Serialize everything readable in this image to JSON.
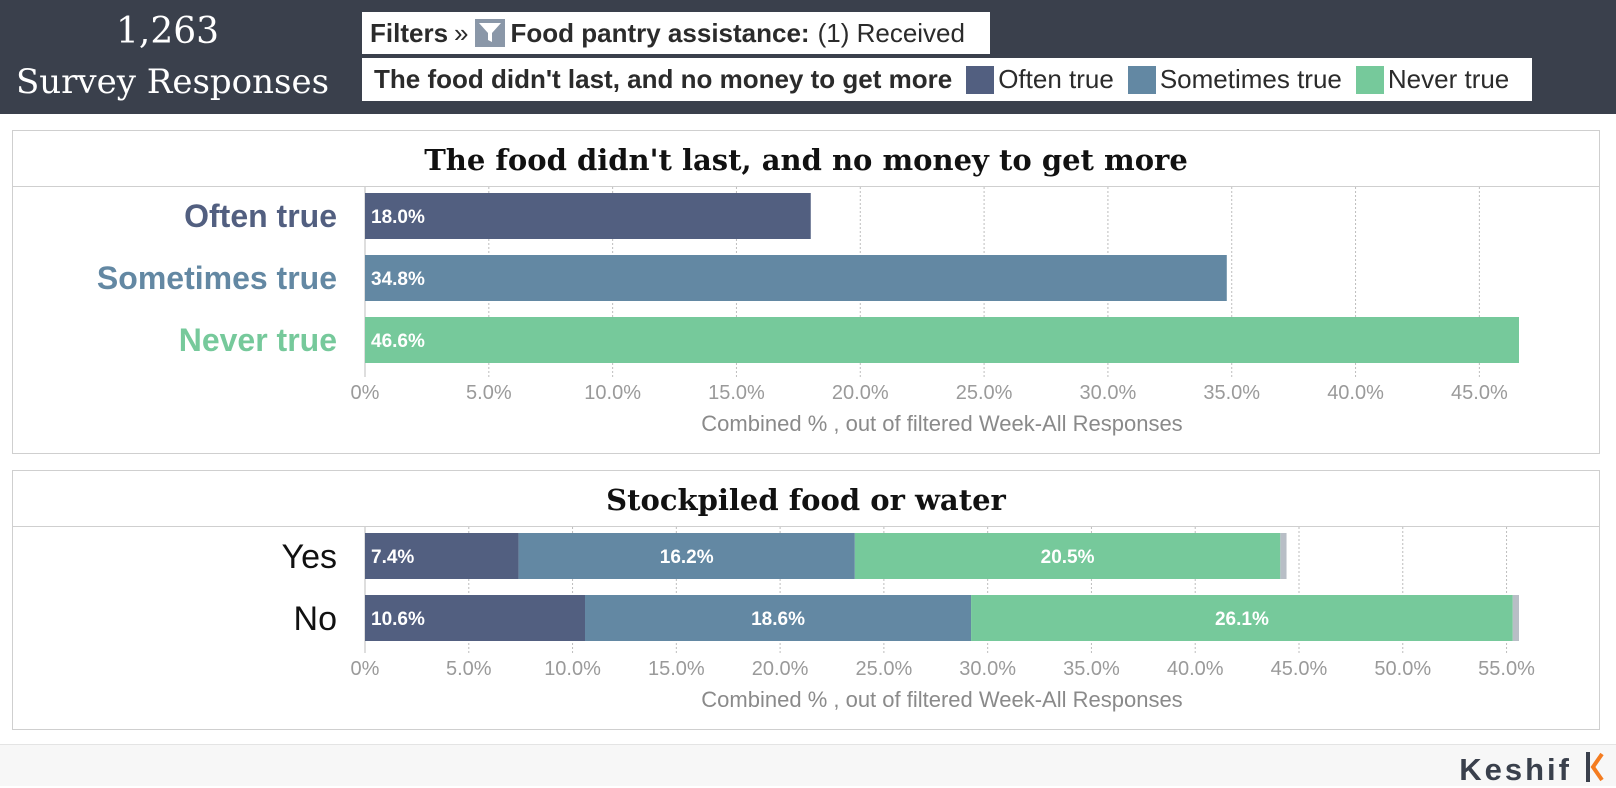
{
  "summary": {
    "count": "1,263",
    "label": "Survey Responses"
  },
  "filters": {
    "label": "Filters",
    "separator": "»",
    "icon": "funnel-icon",
    "name": "Food pantry assistance:",
    "value": "(1) Received"
  },
  "legend": {
    "title": "The food didn't last, and no money to get more",
    "items": [
      {
        "label": "Often true",
        "color": "#525f80"
      },
      {
        "label": "Sometimes true",
        "color": "#6388a3"
      },
      {
        "label": "Never true",
        "color": "#76c99b"
      }
    ]
  },
  "colors": {
    "often": "#525f80",
    "sometimes": "#6388a3",
    "never": "#76c99b",
    "missing": "#b8bec6",
    "header_bg": "#3a404c"
  },
  "chart_data": [
    {
      "type": "bar",
      "orientation": "horizontal",
      "title": "The food didn't last, and no money to get more",
      "xlabel": "Combined % , out of filtered Week-All Responses",
      "categories": [
        "Often true",
        "Sometimes true",
        "Never true"
      ],
      "values": [
        18.0,
        34.8,
        46.6
      ],
      "value_labels": [
        "18.0%",
        "34.8%",
        "46.6%"
      ],
      "xlim": [
        0,
        46.6
      ],
      "ticks": [
        0,
        5,
        10,
        15,
        20,
        25,
        30,
        35,
        40,
        45
      ],
      "tick_labels": [
        "0%",
        "5.0%",
        "10.0%",
        "15.0%",
        "20.0%",
        "25.0%",
        "30.0%",
        "35.0%",
        "40.0%",
        "45.0%"
      ],
      "grid": true
    },
    {
      "type": "bar",
      "orientation": "horizontal",
      "stacked": true,
      "title": "Stockpiled food or water",
      "xlabel": "Combined % , out of filtered Week-All Responses",
      "categories": [
        "Yes",
        "No"
      ],
      "series": [
        {
          "name": "Often true",
          "values": [
            7.4,
            10.6
          ],
          "labels": [
            "7.4%",
            "10.6%"
          ]
        },
        {
          "name": "Sometimes true",
          "values": [
            16.2,
            18.6
          ],
          "labels": [
            "16.2%",
            "18.6%"
          ]
        },
        {
          "name": "Never true",
          "values": [
            20.5,
            26.1
          ],
          "labels": [
            "20.5%",
            "26.1%"
          ]
        },
        {
          "values": [
            0.3,
            0.3
          ]
        }
      ],
      "xlim": [
        0,
        55.6
      ],
      "ticks": [
        0,
        5,
        10,
        15,
        20,
        25,
        30,
        35,
        40,
        45,
        50,
        55
      ],
      "tick_labels": [
        "0%",
        "5.0%",
        "10.0%",
        "15.0%",
        "20.0%",
        "25.0%",
        "30.0%",
        "35.0%",
        "40.0%",
        "45.0%",
        "50.0%",
        "55.0%"
      ],
      "grid": true
    }
  ],
  "footer": {
    "brand": "Keshif"
  }
}
